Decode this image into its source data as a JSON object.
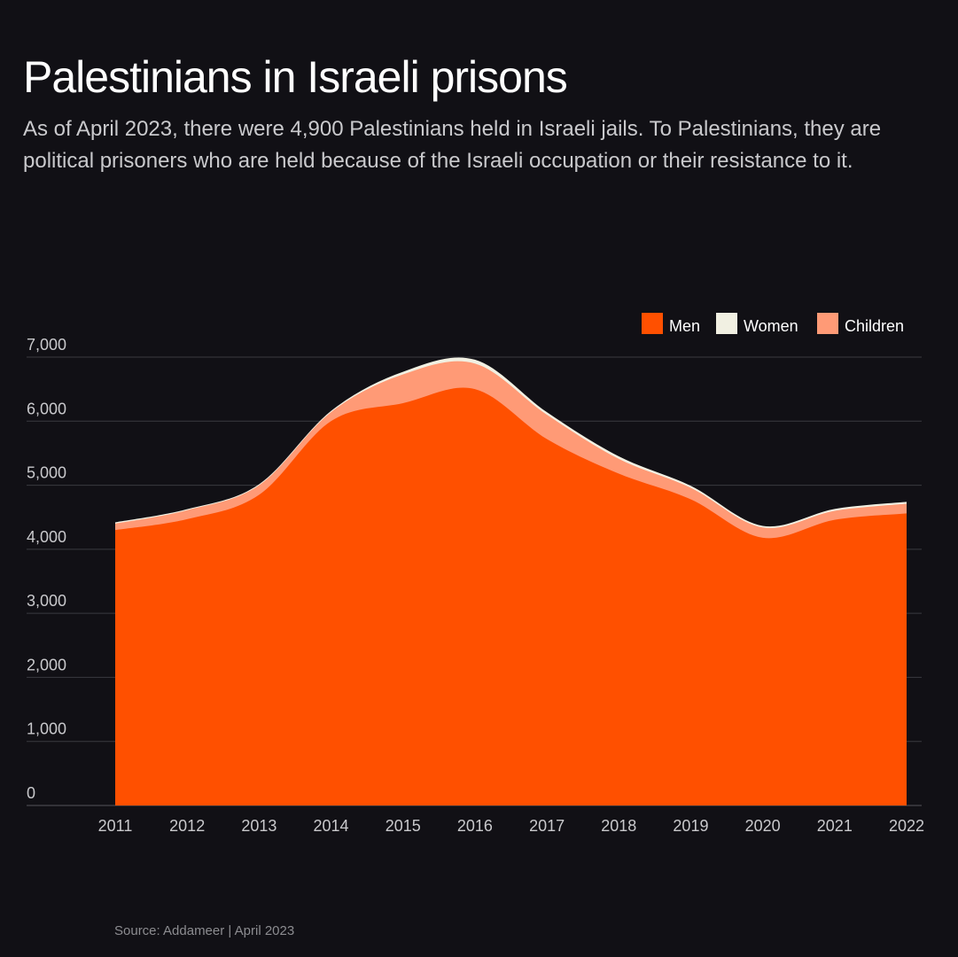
{
  "header": {
    "title": "Palestinians in Israeli prisons",
    "subtitle": "As of April 2023, there were 4,900 Palestinians held in Israeli jails. To Palestinians, they are political prisoners who are held because of the Israeli occupation or their resistance to it."
  },
  "footer": {
    "source": "Source: Addameer | April  2023"
  },
  "colors": {
    "background": "#111015",
    "men": "#ff5000",
    "women": "#f1f0e2",
    "children": "#ff9a76",
    "grid": "#3a3a40"
  },
  "chart_data": {
    "type": "area",
    "stacked": true,
    "x": [
      2011,
      2012,
      2013,
      2014,
      2015,
      2016,
      2017,
      2018,
      2019,
      2020,
      2021,
      2022
    ],
    "categories": [
      "2011",
      "2012",
      "2013",
      "2014",
      "2015",
      "2016",
      "2017",
      "2018",
      "2019",
      "2020",
      "2021",
      "2022"
    ],
    "y_ticks": [
      0,
      1000,
      2000,
      3000,
      4000,
      5000,
      6000,
      7000
    ],
    "y_tick_labels": [
      "0",
      "1,000",
      "2,000",
      "3,000",
      "4,000",
      "5,000",
      "6,000",
      "7,000"
    ],
    "ylim": [
      0,
      7000
    ],
    "legend_position": "top-right",
    "grid": true,
    "series": [
      {
        "name": "Men",
        "color": "#ff5000",
        "values": [
          4300,
          4470,
          4850,
          6000,
          6280,
          6500,
          5720,
          5180,
          4780,
          4180,
          4460,
          4560
        ]
      },
      {
        "name": "Women",
        "color": "#f1f0e2",
        "values": [
          20,
          15,
          15,
          20,
          40,
          60,
          40,
          40,
          30,
          25,
          30,
          30
        ]
      },
      {
        "name": "Children",
        "color": "#ff9a76",
        "values": [
          100,
          140,
          150,
          140,
          450,
          400,
          380,
          230,
          180,
          160,
          140,
          150
        ]
      }
    ]
  }
}
